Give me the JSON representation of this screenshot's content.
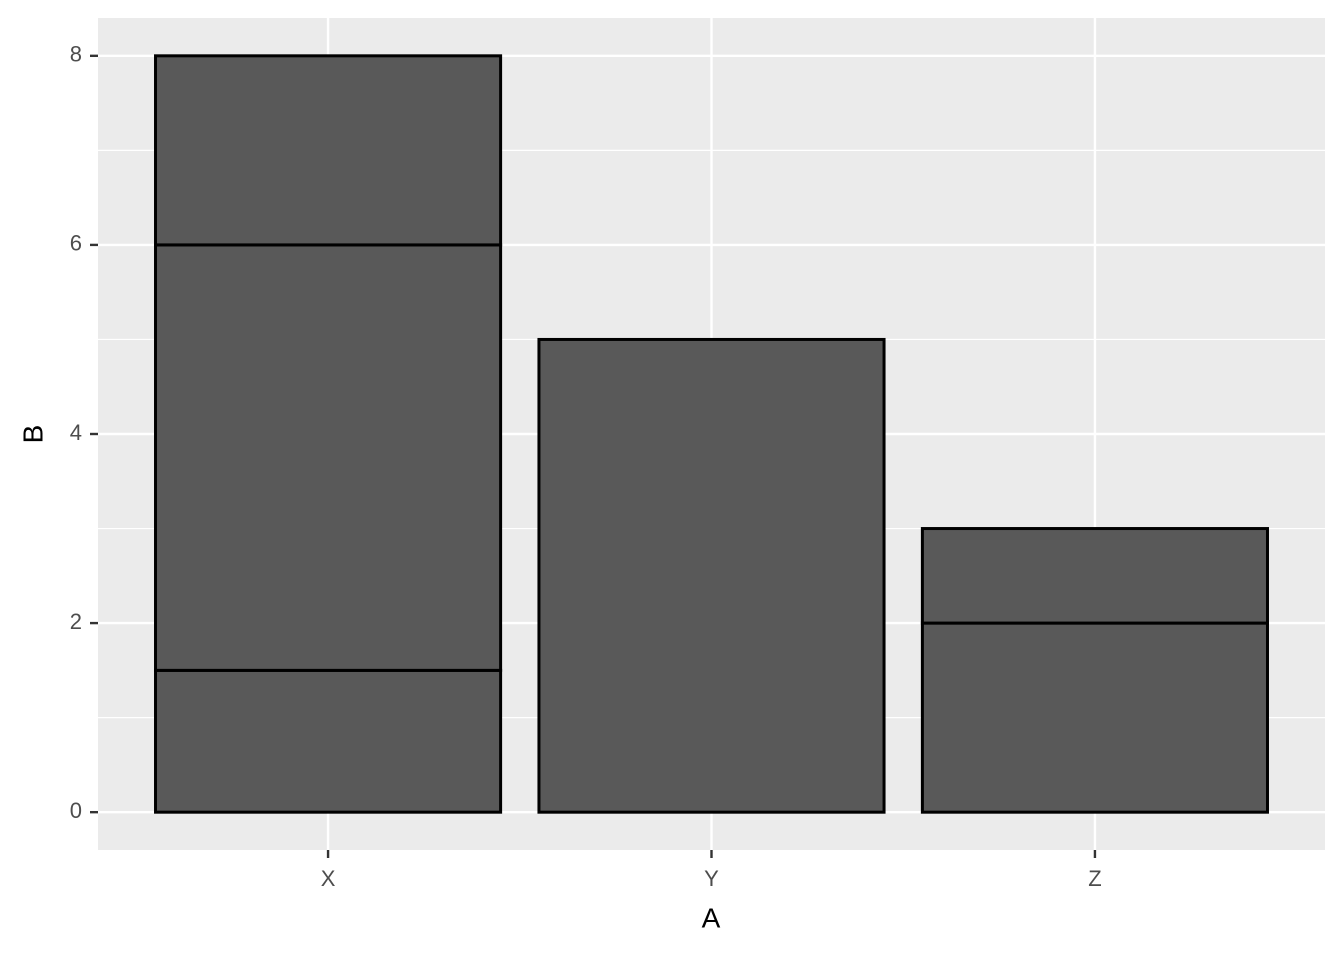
{
  "chart_data": {
    "type": "stacked-bar",
    "x_label": "A",
    "y_label": "B",
    "categories": [
      "X",
      "Y",
      "Z"
    ],
    "series": [
      {
        "color": "#595959",
        "values": [
          1.5,
          5,
          2
        ]
      },
      {
        "color": "#595959",
        "values": [
          4.5,
          null,
          1
        ]
      },
      {
        "color": "#595959",
        "values": [
          2,
          null,
          null
        ]
      }
    ],
    "ylim": [
      -0.4,
      8.4
    ],
    "yticks": [
      0,
      2,
      4,
      6,
      8
    ],
    "grid": true
  }
}
